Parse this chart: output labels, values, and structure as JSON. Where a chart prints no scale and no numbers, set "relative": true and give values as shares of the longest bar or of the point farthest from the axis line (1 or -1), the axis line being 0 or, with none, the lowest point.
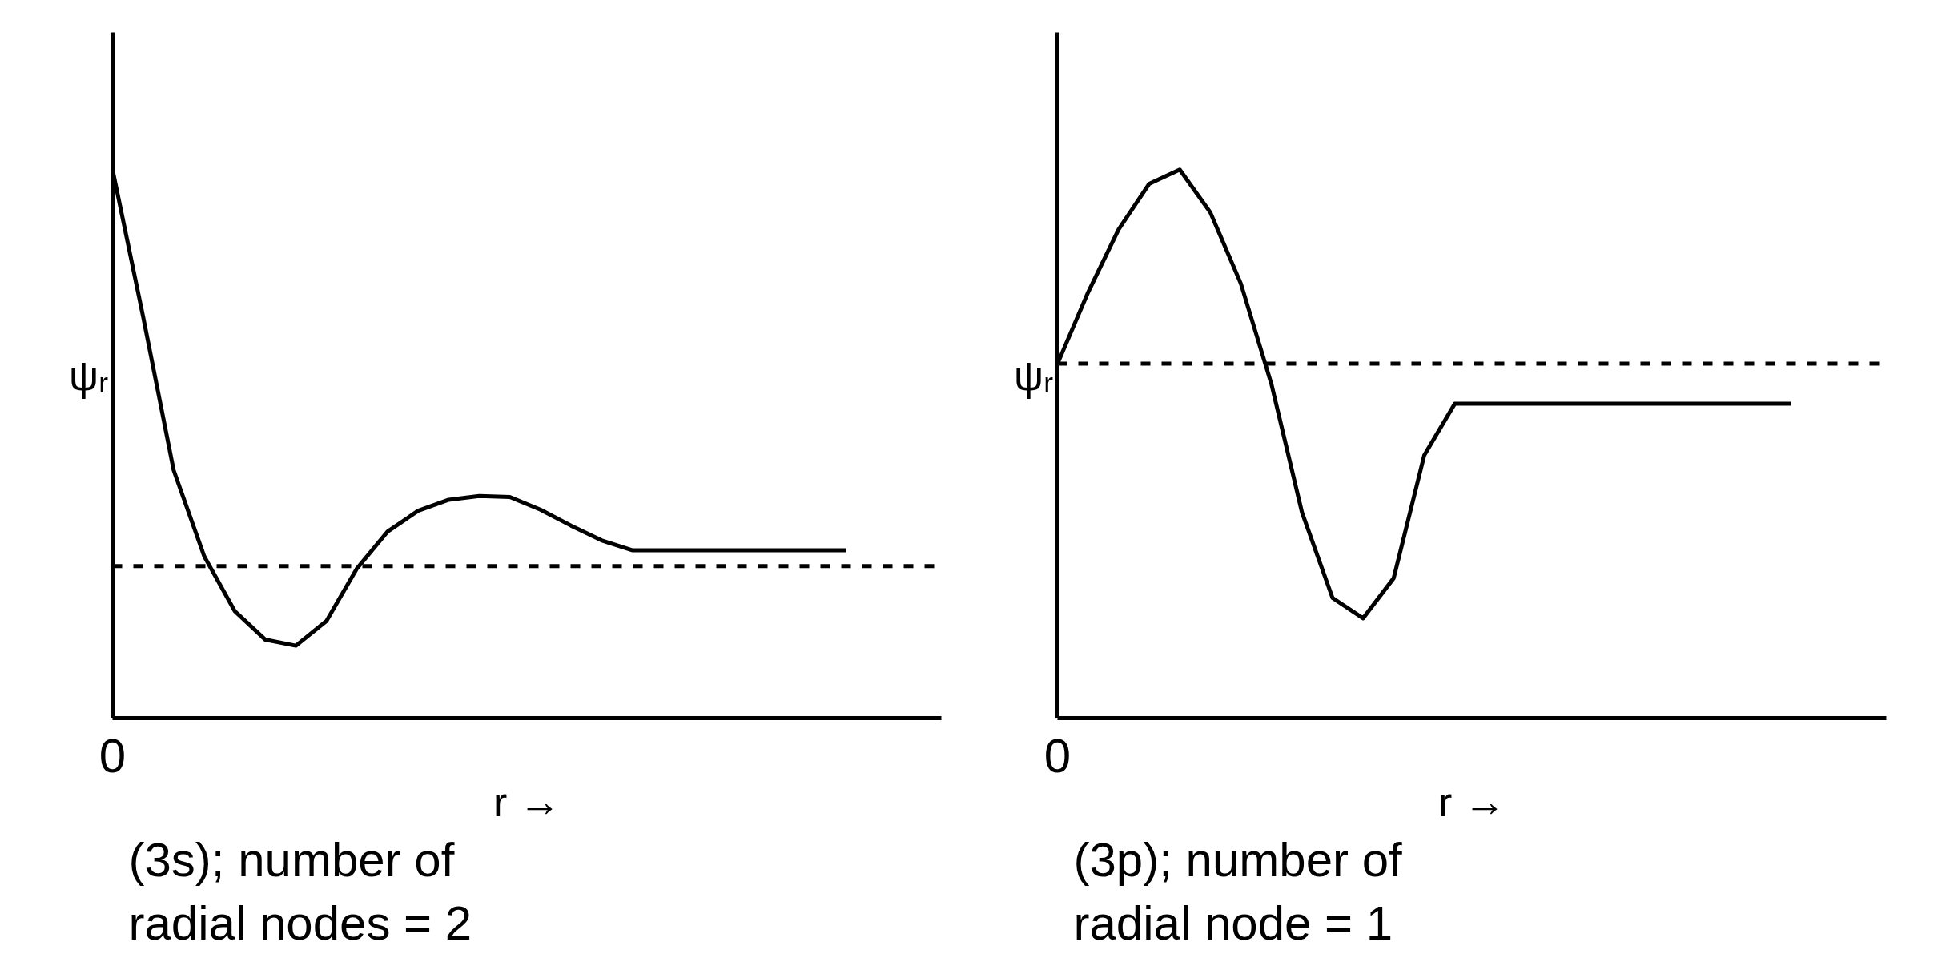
{
  "chart_data": [
    {
      "type": "line",
      "relative": true,
      "title": "(3s); number of radial nodes = 2",
      "ylabel": "ψᵣ",
      "xlabel": "r →",
      "annotations": [
        "0"
      ],
      "marker": "none",
      "line_style": "solid",
      "categories": [
        null,
        null,
        null,
        null,
        null,
        null,
        null,
        null,
        null,
        null,
        null,
        null,
        null,
        null,
        null,
        null,
        null,
        null,
        null,
        null,
        null,
        null,
        null,
        null,
        null
      ],
      "series": [
        {
          "color": "#000000",
          "values": [
            1.0,
            0.732,
            0.452,
            0.295,
            0.195,
            0.143,
            0.132,
            0.177,
            0.273,
            0.34,
            0.378,
            0.398,
            0.405,
            0.403,
            0.38,
            0.351,
            0.324,
            0.306,
            0.306,
            0.306,
            0.306,
            0.306,
            0.306,
            0.306,
            0.306
          ]
        }
      ],
      "ref_lines": [
        {
          "axis": "y",
          "value": 0.277,
          "color": "#000000",
          "line_style": "dashed"
        }
      ]
    },
    {
      "type": "line",
      "relative": true,
      "title": "(3p); number of radial node = 1",
      "ylabel": "ψᵣ",
      "xlabel": "r →",
      "annotations": [
        "0"
      ],
      "marker": "none",
      "line_style": "solid",
      "categories": [
        null,
        null,
        null,
        null,
        null,
        null,
        null,
        null,
        null,
        null,
        null,
        null,
        null,
        null,
        null,
        null,
        null,
        null,
        null,
        null,
        null,
        null,
        null,
        null,
        null
      ],
      "series": [
        {
          "color": "#000000",
          "values": [
            0.646,
            0.776,
            0.891,
            0.974,
            1.0,
            0.922,
            0.792,
            0.609,
            0.375,
            0.219,
            0.182,
            0.255,
            0.479,
            0.573,
            0.573,
            0.573,
            0.573,
            0.573,
            0.573,
            0.573,
            0.573,
            0.573,
            0.573,
            0.573,
            0.573
          ]
        }
      ],
      "ref_lines": [
        {
          "axis": "y",
          "value": 0.646,
          "color": "#000000",
          "line_style": "dashed"
        }
      ]
    }
  ]
}
